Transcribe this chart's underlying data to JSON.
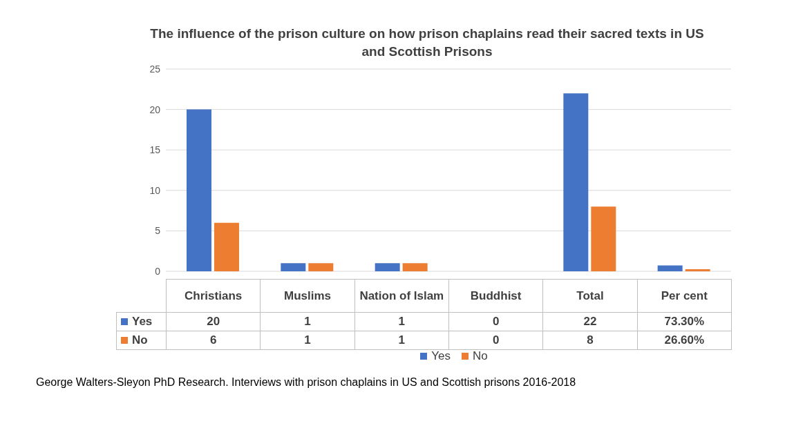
{
  "chart_data": {
    "type": "bar",
    "title": "The influence of the prison culture on how prison chaplains read their sacred texts in US and Scottish Prisons",
    "categories": [
      "Christians",
      "Muslims",
      "Nation of Islam",
      "Buddhist",
      "Total",
      "Per cent"
    ],
    "series": [
      {
        "name": "Yes",
        "color": "#4472c4",
        "values": [
          20,
          1,
          1,
          0,
          22,
          0.733
        ],
        "value_labels": [
          "20",
          "1",
          "1",
          "0",
          "22",
          "73.30%"
        ]
      },
      {
        "name": "No",
        "color": "#ed7d31",
        "values": [
          6,
          1,
          1,
          0,
          8,
          0.266
        ],
        "value_labels": [
          "6",
          "1",
          "1",
          "0",
          "8",
          "26.60%"
        ]
      }
    ],
    "ylim": [
      0,
      25
    ],
    "yticks": [
      0,
      5,
      10,
      15,
      20,
      25
    ],
    "grid": "y",
    "legend": "bottom",
    "annotations": [
      "George Walters-Sleyon PhD Research. Interviews with prison chaplains in US and Scottish prisons 2016-2018"
    ]
  }
}
